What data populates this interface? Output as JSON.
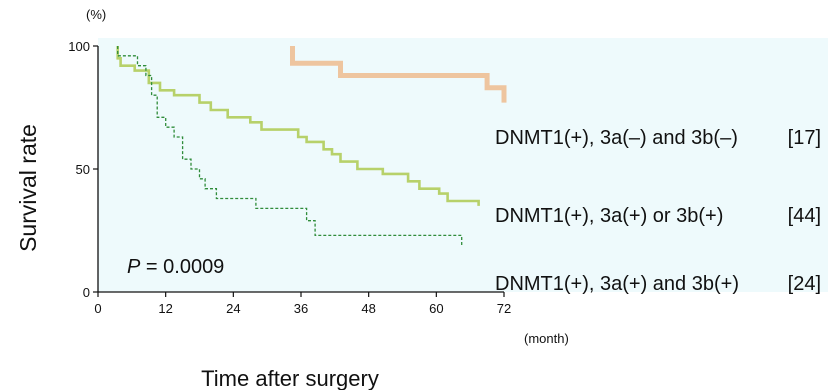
{
  "chart_data": {
    "type": "line",
    "subtype": "kaplan-meier step curves",
    "y_unit_label": "(%)",
    "x_unit_label": "(month)",
    "xlabel": "Time after surgery",
    "ylabel": "Survival rate",
    "xlim": [
      0,
      72
    ],
    "ylim": [
      0,
      100
    ],
    "x_ticks": [
      0,
      12,
      24,
      36,
      48,
      60,
      72
    ],
    "y_ticks": [
      0,
      50,
      100
    ],
    "plot_background": "#eefafc",
    "annotation": {
      "prefix": "P",
      "text": " = 0.0009"
    },
    "series": [
      {
        "name": "DNMT1(+), 3a(–) and 3b(–)",
        "count": "[17]",
        "color": "#eec59f",
        "style": "solid-thick",
        "x": [
          34.5,
          34.5,
          43,
          43,
          69,
          69,
          72,
          72
        ],
        "y": [
          100,
          93,
          93,
          88,
          88,
          83,
          83,
          77
        ]
      },
      {
        "name": "DNMT1(+), 3a(+) or 3b(+)",
        "count": "[44]",
        "color": "#b7d16a",
        "style": "solid",
        "x": [
          3.5,
          3.5,
          4,
          4,
          6.5,
          6.5,
          9,
          9,
          11,
          11,
          13.5,
          13.5,
          18,
          18,
          20,
          20,
          23,
          23,
          27,
          27,
          29,
          29,
          35.5,
          35.5,
          37,
          37,
          40,
          40,
          41.5,
          41.5,
          43,
          43,
          46,
          46,
          50.5,
          50.5,
          55,
          55,
          57,
          57,
          60.5,
          60.5,
          62,
          62,
          67.5,
          67.5
        ],
        "y": [
          100,
          95,
          95,
          92,
          92,
          90,
          90,
          85,
          85,
          82,
          82,
          80,
          80,
          77,
          77,
          74,
          74,
          71,
          71,
          69,
          69,
          66,
          66,
          63,
          63,
          61,
          61,
          58,
          58,
          56,
          56,
          53,
          53,
          50,
          50,
          48,
          48,
          45,
          45,
          42,
          42,
          40,
          40,
          37,
          37,
          35
        ]
      },
      {
        "name": "DNMT1(+), 3a(+) and 3b(+)",
        "count": "[24]",
        "color": "#2f8c3a",
        "style": "dashed",
        "x": [
          3.5,
          3.5,
          7,
          7,
          8.5,
          8.5,
          9.5,
          9.5,
          10.5,
          10.5,
          12,
          12,
          13.5,
          13.5,
          15,
          15,
          16.5,
          16.5,
          18,
          18,
          19,
          19,
          21,
          21,
          28,
          28,
          37,
          37,
          38.5,
          38.5,
          64.5,
          64.5
        ],
        "y": [
          100,
          96,
          96,
          92,
          92,
          88,
          88,
          80,
          80,
          71,
          71,
          67,
          67,
          63,
          63,
          54,
          54,
          50,
          50,
          46,
          46,
          42,
          42,
          38,
          38,
          34,
          34,
          29,
          29,
          23,
          23,
          19
        ]
      }
    ]
  }
}
